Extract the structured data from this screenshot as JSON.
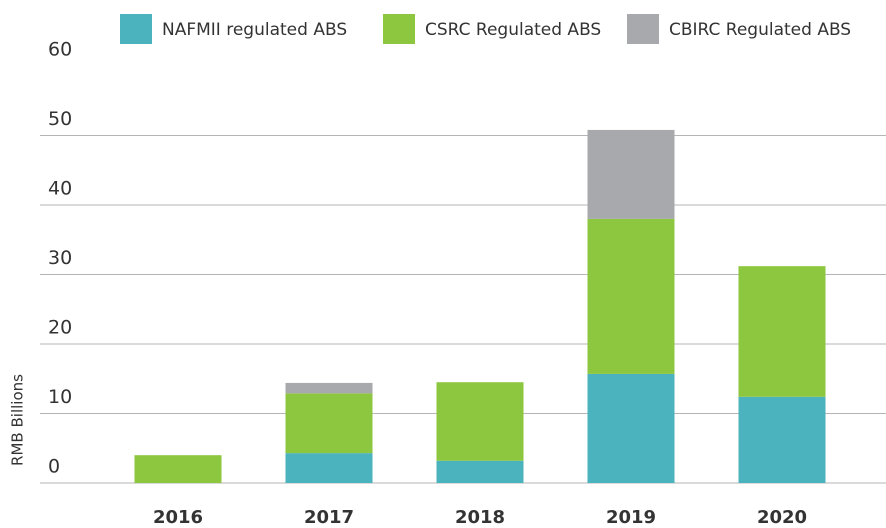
{
  "chart_data": {
    "type": "stacked_bar",
    "y_label": "RMB Billions",
    "categories": [
      "2016",
      "2017",
      "2018",
      "2019",
      "2020"
    ],
    "series": [
      {
        "name": "NAFMII regulated ABS",
        "color": "#4bb3bd",
        "values": [
          0,
          4.3,
          3.2,
          15.7,
          12.4
        ]
      },
      {
        "name": "CSRC Regulated ABS",
        "color": "#8dc63f",
        "values": [
          4.0,
          8.6,
          11.3,
          22.3,
          18.8
        ]
      },
      {
        "name": "CBIRC Regulated ABS",
        "color": "#a7a9ac",
        "values": [
          0,
          1.5,
          0,
          12.8,
          0
        ]
      }
    ],
    "ylim": [
      0,
      60
    ],
    "yticks": [
      0,
      10,
      20,
      30,
      40,
      50,
      60
    ],
    "grid": true
  }
}
